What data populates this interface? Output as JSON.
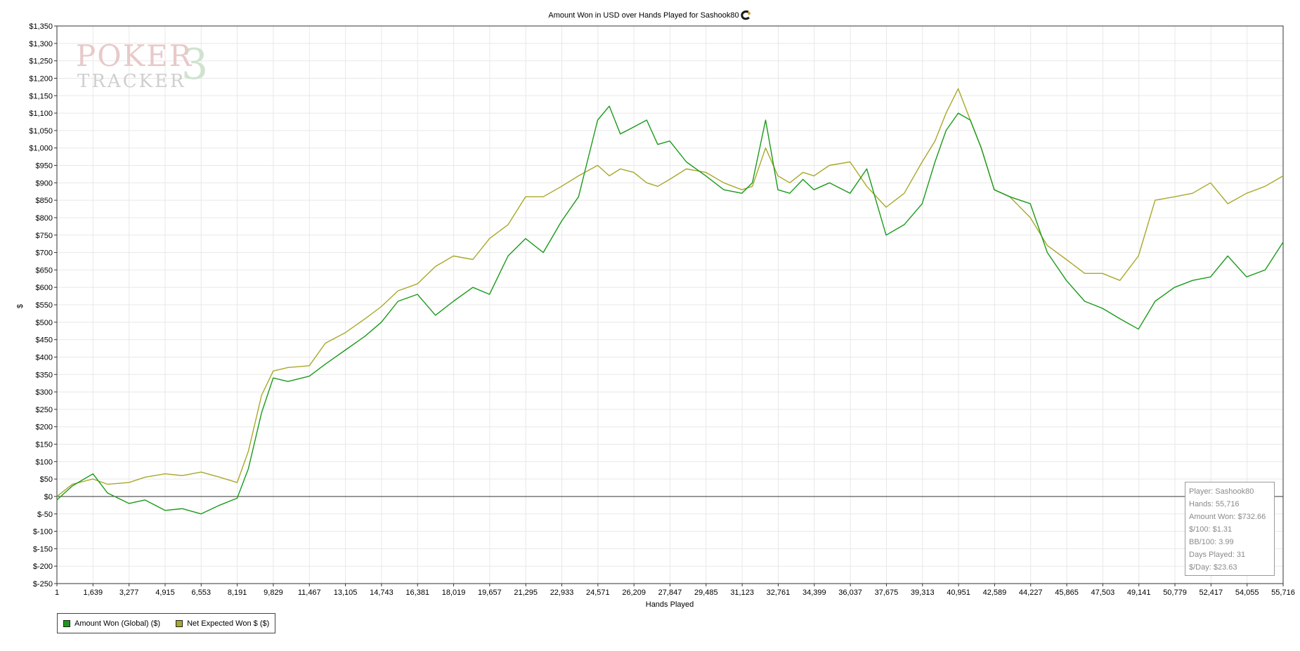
{
  "logo": {
    "line1": "POKER",
    "line2": "TRACKER",
    "mark": "3"
  },
  "legend": [
    {
      "label": "Amount Won (Global) ($)",
      "color": "#1a9a1a"
    },
    {
      "label": "Net Expected Won $ ($)",
      "color": "#a8a82a"
    }
  ],
  "stats": {
    "player": "Player: Sashook80",
    "hands": "Hands: 55,716",
    "amount_won": "Amount Won: $732.66",
    "per100": "$/100: $1.31",
    "bb100": "BB/100: 3.99",
    "days": "Days Played: 31",
    "perday": "$/Day: $23.63"
  },
  "chart_data": {
    "type": "line",
    "title": "Amount Won in USD over Hands Played for Sashook80",
    "title_icon": "c-logo-icon",
    "xlabel": "Hands Played",
    "ylabel": "$",
    "xlim": [
      1,
      55716
    ],
    "ylim": [
      -250,
      1350
    ],
    "grid": true,
    "legend_position": "bottom-left",
    "x_ticks": [
      "1",
      "1,639",
      "3,277",
      "4,915",
      "6,553",
      "8,191",
      "9,829",
      "11,467",
      "13,105",
      "14,743",
      "16,381",
      "18,019",
      "19,657",
      "21,295",
      "22,933",
      "24,571",
      "26,209",
      "27,847",
      "29,485",
      "31,123",
      "32,761",
      "34,399",
      "36,037",
      "37,675",
      "39,313",
      "40,951",
      "42,589",
      "44,227",
      "45,865",
      "47,503",
      "49,141",
      "50,779",
      "52,417",
      "54,055",
      "55,716"
    ],
    "y_ticks": [
      "$1,350",
      "$1,300",
      "$1,250",
      "$1,200",
      "$1,150",
      "$1,100",
      "$1,050",
      "$1,000",
      "$950",
      "$900",
      "$850",
      "$800",
      "$750",
      "$700",
      "$650",
      "$600",
      "$550",
      "$500",
      "$450",
      "$400",
      "$350",
      "$300",
      "$250",
      "$200",
      "$150",
      "$100",
      "$50",
      "$0",
      "$-50",
      "$-100",
      "$-150",
      "$-200",
      "$-250"
    ],
    "series": [
      {
        "name": "Amount Won (Global) ($)",
        "color": "#1a9a1a",
        "x": [
          1,
          700,
          1639,
          2300,
          3277,
          4000,
          4915,
          5700,
          6553,
          7400,
          8191,
          8700,
          9300,
          9829,
          10500,
          11467,
          12200,
          13105,
          14000,
          14743,
          15500,
          16381,
          17200,
          18019,
          18900,
          19657,
          20500,
          21295,
          22100,
          22933,
          23700,
          24571,
          25100,
          25600,
          26209,
          26800,
          27300,
          27847,
          28600,
          29485,
          30300,
          31123,
          31600,
          32200,
          32761,
          33300,
          33900,
          34399,
          35100,
          36037,
          36800,
          37675,
          38500,
          39313,
          39900,
          40400,
          40951,
          41500,
          42000,
          42589,
          43300,
          44227,
          45000,
          45865,
          46700,
          47503,
          48300,
          49141,
          49900,
          50779,
          51600,
          52417,
          53200,
          54055,
          54900,
          55716
        ],
        "y": [
          -10,
          30,
          65,
          10,
          -20,
          -10,
          -40,
          -35,
          -50,
          -25,
          -5,
          80,
          240,
          340,
          330,
          345,
          380,
          420,
          460,
          500,
          560,
          580,
          520,
          560,
          600,
          580,
          690,
          740,
          700,
          790,
          860,
          1080,
          1120,
          1040,
          1060,
          1080,
          1010,
          1020,
          960,
          920,
          880,
          870,
          900,
          1080,
          880,
          870,
          910,
          880,
          900,
          870,
          940,
          750,
          780,
          840,
          960,
          1050,
          1100,
          1080,
          1000,
          880,
          860,
          840,
          700,
          620,
          560,
          540,
          510,
          480,
          560,
          600,
          620,
          630,
          690,
          630,
          650,
          730
        ]
      },
      {
        "name": "Net Expected Won $ ($)",
        "color": "#a8a82a",
        "x": [
          1,
          700,
          1639,
          2300,
          3277,
          4000,
          4915,
          5700,
          6553,
          7400,
          8191,
          8700,
          9300,
          9829,
          10500,
          11467,
          12200,
          13105,
          14000,
          14743,
          15500,
          16381,
          17200,
          18019,
          18900,
          19657,
          20500,
          21295,
          22100,
          22933,
          23700,
          24571,
          25100,
          25600,
          26209,
          26800,
          27300,
          27847,
          28600,
          29485,
          30300,
          31123,
          31600,
          32200,
          32761,
          33300,
          33900,
          34399,
          35100,
          36037,
          36800,
          37675,
          38500,
          39313,
          39900,
          40400,
          40951,
          41500,
          42000,
          42589,
          43300,
          44227,
          45000,
          45865,
          46700,
          47503,
          48300,
          49141,
          49900,
          50779,
          51600,
          52417,
          53200,
          54055,
          54900,
          55716
        ],
        "y": [
          0,
          35,
          50,
          35,
          40,
          55,
          65,
          60,
          70,
          55,
          40,
          130,
          290,
          360,
          370,
          375,
          440,
          470,
          510,
          545,
          590,
          610,
          660,
          690,
          680,
          740,
          780,
          860,
          860,
          890,
          920,
          950,
          920,
          940,
          930,
          900,
          890,
          910,
          940,
          930,
          900,
          880,
          890,
          1000,
          920,
          900,
          930,
          920,
          950,
          960,
          890,
          830,
          870,
          960,
          1020,
          1100,
          1170,
          1080,
          1000,
          880,
          860,
          800,
          720,
          680,
          640,
          640,
          620,
          690,
          850,
          860,
          870,
          900,
          840,
          870,
          890,
          920
        ]
      }
    ]
  }
}
